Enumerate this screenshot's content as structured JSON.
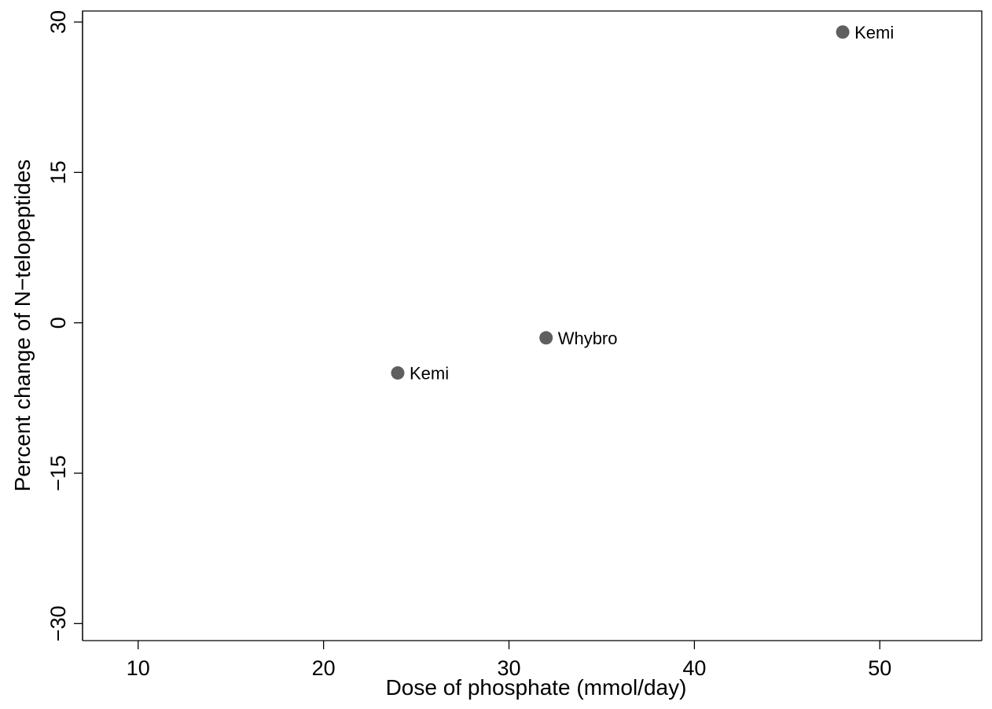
{
  "chart_data": {
    "type": "scatter",
    "title": "",
    "xlabel": "Dose of phosphate (mmol/day)",
    "ylabel": "Percent change of N−telopeptides",
    "xlim": [
      7,
      55.5
    ],
    "ylim": [
      -31.7,
      31.1
    ],
    "xticks": [
      10,
      20,
      30,
      40,
      50
    ],
    "xtick_labels": [
      "10",
      "20",
      "30",
      "40",
      "50"
    ],
    "yticks": [
      -30,
      -15,
      0,
      15,
      30
    ],
    "ytick_labels": [
      "−30",
      "−15",
      "0",
      "15",
      "30"
    ],
    "grid": false,
    "points": [
      {
        "x": 24,
        "y": -5,
        "label": "Kemi"
      },
      {
        "x": 32,
        "y": -1.5,
        "label": "Whybro"
      },
      {
        "x": 48,
        "y": 29,
        "label": "Kemi"
      }
    ],
    "colors": {
      "marker": "#5f5f5f",
      "axis": "#000000"
    }
  }
}
